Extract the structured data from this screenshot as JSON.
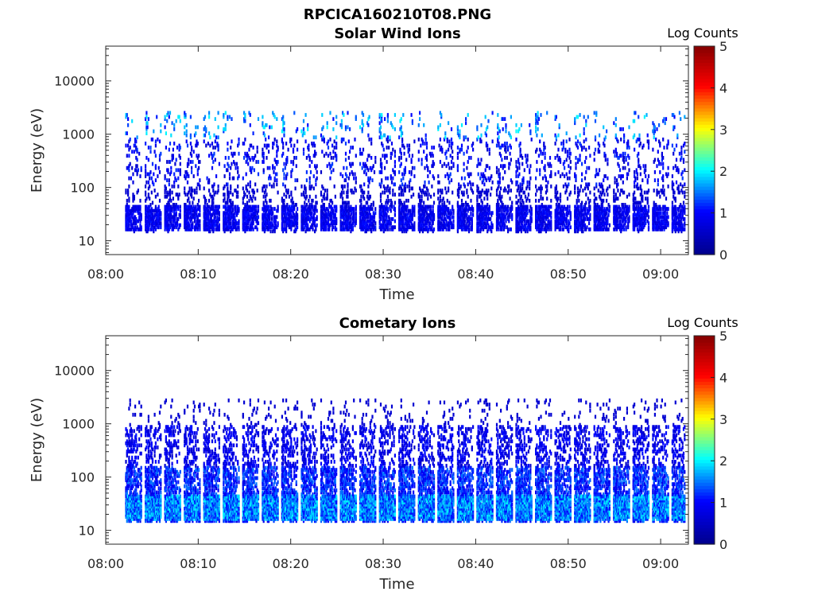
{
  "figure_title": "RPCICA160210T08.PNG",
  "chart_data": [
    {
      "type": "heatmap",
      "title": "Solar Wind Ions",
      "xlabel": "Time",
      "ylabel": "Energy (eV)",
      "y_scale": "log",
      "ylim": [
        5.5,
        45000
      ],
      "x_ticks": [
        "08:00",
        "08:10",
        "08:20",
        "08:30",
        "08:40",
        "08:50",
        "09:00"
      ],
      "y_ticks": [
        "10",
        "100",
        "1000",
        "10000"
      ],
      "colorbar": {
        "label": "Log Counts",
        "range": [
          0,
          5
        ],
        "ticks": [
          "0",
          "1",
          "2",
          "3",
          "4",
          "5"
        ]
      },
      "pattern": "solar"
    },
    {
      "type": "heatmap",
      "title": "Cometary Ions",
      "xlabel": "Time",
      "ylabel": "Energy (eV)",
      "y_scale": "log",
      "ylim": [
        5.5,
        45000
      ],
      "x_ticks": [
        "08:00",
        "08:10",
        "08:20",
        "08:30",
        "08:40",
        "08:50",
        "09:00"
      ],
      "y_ticks": [
        "10",
        "100",
        "1000",
        "10000"
      ],
      "colorbar": {
        "label": "Log Counts",
        "range": [
          0,
          5
        ],
        "ticks": [
          "0",
          "1",
          "2",
          "3",
          "4",
          "5"
        ]
      },
      "pattern": "cometary"
    }
  ],
  "colors": {
    "colormap": [
      "#00008f",
      "#0000ff",
      "#00ffff",
      "#ffff00",
      "#ff0000",
      "#800000"
    ]
  }
}
